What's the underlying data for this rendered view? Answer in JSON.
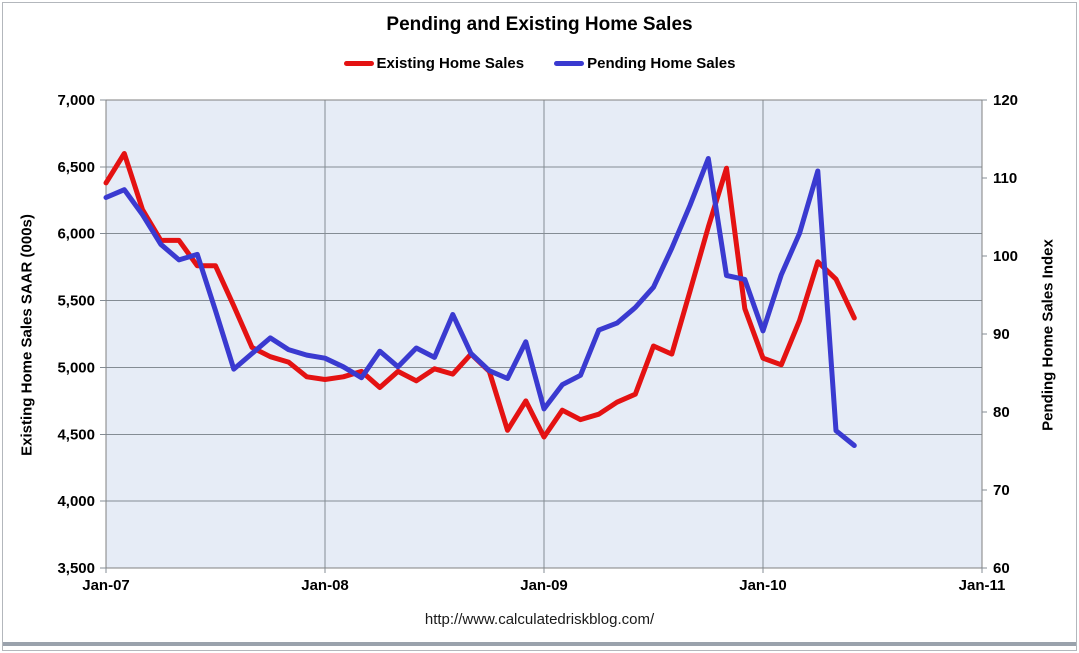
{
  "chart_data": {
    "type": "line",
    "title": "Pending and Existing Home Sales",
    "footer_url": "http://www.calculatedriskblog.com/",
    "grid": true,
    "legend_position": "top-center",
    "plot_bg_color": "#e6ecf6",
    "gridline_color": "#848c94",
    "border_color": "#808080",
    "x_months": [
      "Jan-07",
      "Feb-07",
      "Mar-07",
      "Apr-07",
      "May-07",
      "Jun-07",
      "Jul-07",
      "Aug-07",
      "Sep-07",
      "Oct-07",
      "Nov-07",
      "Dec-07",
      "Jan-08",
      "Feb-08",
      "Mar-08",
      "Apr-08",
      "May-08",
      "Jun-08",
      "Jul-08",
      "Aug-08",
      "Sep-08",
      "Oct-08",
      "Nov-08",
      "Dec-08",
      "Jan-09",
      "Feb-09",
      "Mar-09",
      "Apr-09",
      "May-09",
      "Jun-09",
      "Jul-09",
      "Aug-09",
      "Sep-09",
      "Oct-09",
      "Nov-09",
      "Dec-09",
      "Jan-10",
      "Feb-10",
      "Mar-10",
      "Apr-10",
      "May-10",
      "Jun-10"
    ],
    "x_axis_ticks": [
      "Jan-07",
      "Jan-08",
      "Jan-09",
      "Jan-10",
      "Jan-11"
    ],
    "x_axis_range_months": 48,
    "left_axis": {
      "label": "Existing Home Sales  SAAR (000s)",
      "min": 3500,
      "max": 7000,
      "step": 500
    },
    "right_axis": {
      "label": "Pending Home Sales Index",
      "min": 60,
      "max": 120,
      "step": 10
    },
    "series": [
      {
        "name": "Existing Home Sales",
        "axis": "left",
        "color": "#e41212",
        "values": [
          6380,
          6600,
          6180,
          5950,
          5950,
          5760,
          5760,
          5460,
          5150,
          5080,
          5040,
          4930,
          4910,
          4930,
          4970,
          4850,
          4970,
          4900,
          4990,
          4950,
          5100,
          4970,
          4530,
          4750,
          4480,
          4680,
          4610,
          4650,
          4740,
          4800,
          5160,
          5100,
          5570,
          6050,
          6490,
          5440,
          5070,
          5020,
          5350,
          5790,
          5660,
          5370
        ]
      },
      {
        "name": "Pending Home Sales",
        "axis": "right",
        "color": "#3a3ad0",
        "values": [
          107.5,
          108.5,
          105.3,
          101.5,
          99.5,
          100.2,
          93.0,
          85.5,
          87.5,
          89.5,
          88.0,
          87.3,
          86.9,
          85.8,
          84.4,
          87.8,
          85.8,
          88.2,
          87.0,
          92.5,
          87.5,
          85.3,
          84.3,
          89.0,
          80.4,
          83.5,
          84.7,
          90.5,
          91.4,
          93.4,
          96.0,
          101.0,
          106.5,
          112.5,
          97.5,
          97.0,
          90.4,
          97.6,
          102.9,
          110.9,
          77.6,
          75.7
        ]
      }
    ]
  }
}
